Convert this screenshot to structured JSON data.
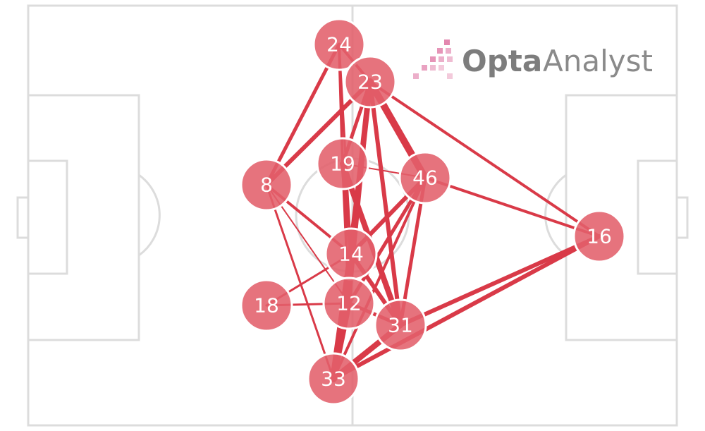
{
  "logo": {
    "brand": "Opta",
    "product": "Analyst"
  },
  "nodes": [
    {
      "label": "24"
    },
    {
      "label": "23"
    },
    {
      "label": "19"
    },
    {
      "label": "8"
    },
    {
      "label": "46"
    },
    {
      "label": "16"
    },
    {
      "label": "14"
    },
    {
      "label": "18"
    },
    {
      "label": "12"
    },
    {
      "label": "31"
    },
    {
      "label": "33"
    }
  ]
}
